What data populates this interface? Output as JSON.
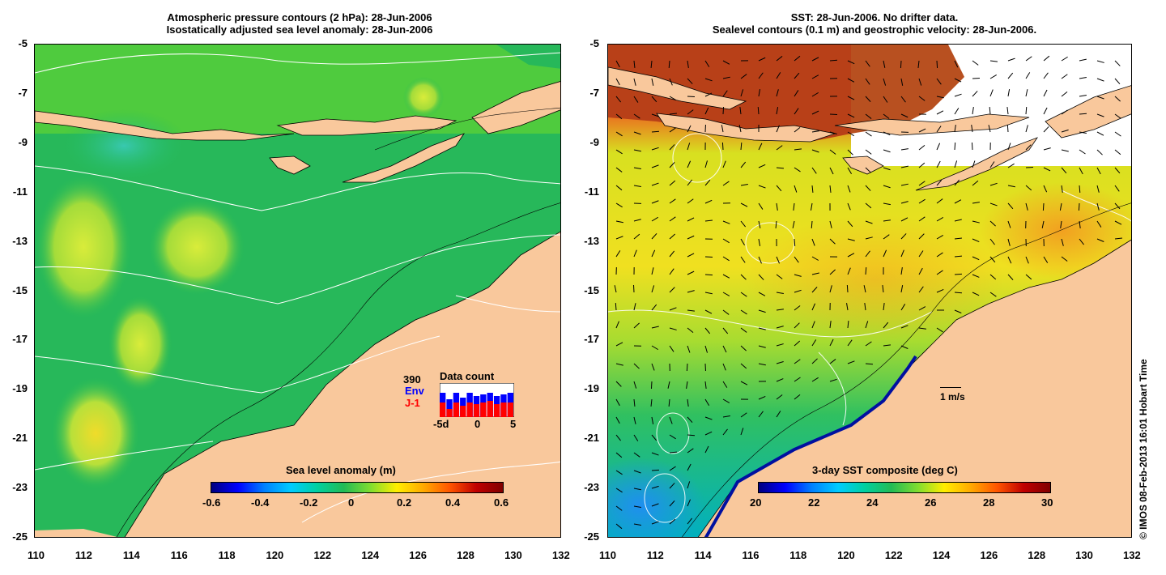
{
  "left_panel": {
    "title_line1": "Atmospheric pressure contours (2 hPa): 28-Jun-2006",
    "title_line2": "Isostatically adjusted sea level anomaly: 28-Jun-2006",
    "colorbar_title": "Sea level anomaly (m)",
    "colorbar_ticks": [
      "-0.6",
      "-0.4",
      "-0.2",
      "0",
      "0.2",
      "0.4",
      "0.6"
    ],
    "data_count": {
      "title": "Data count",
      "total": "390",
      "env_label": "Env",
      "j1_label": "J-1",
      "x_ticks": [
        "-5d",
        "0",
        "5"
      ],
      "env_color": "#0000ff",
      "j1_color": "#ff0000"
    }
  },
  "right_panel": {
    "title_line1": "SST: 28-Jun-2006. No drifter data.",
    "title_line2": "Sealevel contours (0.1 m) and geostrophic velocity: 28-Jun-2006.",
    "colorbar_title": "3-day SST composite (deg C)",
    "colorbar_ticks": [
      "20",
      "22",
      "24",
      "26",
      "28",
      "30"
    ],
    "scale_label": "1 m/s"
  },
  "axes": {
    "lon_ticks": [
      "110",
      "112",
      "114",
      "116",
      "118",
      "120",
      "122",
      "124",
      "126",
      "128",
      "130",
      "132"
    ],
    "lat_ticks": [
      "-5",
      "-7",
      "-9",
      "-11",
      "-13",
      "-15",
      "-17",
      "-19",
      "-21",
      "-23",
      "-25"
    ]
  },
  "copyright": "© IMOS 08-Feb-2013 16:01 Hobart Time",
  "colors": {
    "land": "#f9c89c",
    "ocean_green": "#22bb55",
    "white_contour": "#ffffff"
  }
}
